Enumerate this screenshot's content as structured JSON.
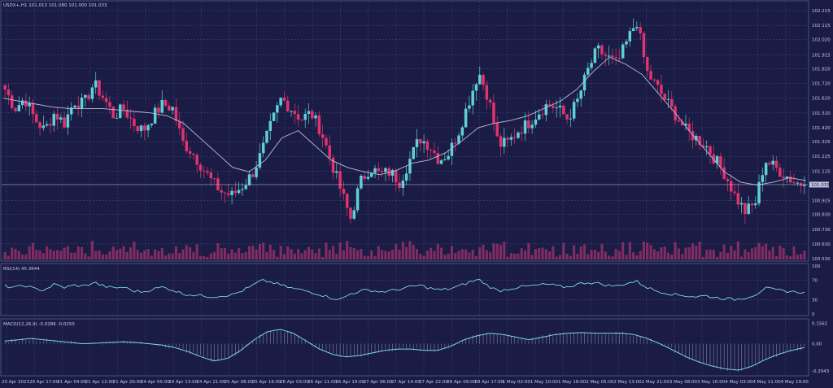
{
  "window": {
    "symbol_line": "USDX+,H1  101.013 101.080 101.000 101.033"
  },
  "colors": {
    "background": "#1a1c45",
    "grid": "#8a8fc0",
    "bull": "#5fd0d8",
    "bear": "#e0336f",
    "ma": "#b9bcd6",
    "rsi": "#7fd6e6",
    "macd": "#7fd6e6",
    "volume": "#d83a7a",
    "text": "#c8cbe6",
    "current_price_box": "#bfc3dc"
  },
  "chart_data": [
    {
      "type": "line",
      "panel": "price",
      "subtype": "candlestick",
      "current_price": 101.033,
      "current_price_label": "101.033",
      "y_ticks": [
        "102.215",
        "102.115",
        "102.020",
        "101.915",
        "101.820",
        "101.720",
        "101.620",
        "101.520",
        "101.420",
        "101.325",
        "101.225",
        "101.125",
        "100.925",
        "100.830",
        "100.730",
        "100.630",
        "100.530"
      ],
      "ylim": [
        100.53,
        102.265
      ],
      "x_tick_labels": [
        "20 Apr 2023",
        "20 Apr 17:00",
        "21 Apr 04:00",
        "21 Apr 12:00",
        "21 Apr 20:00",
        "24 Apr 05:00",
        "24 Apr 13:00",
        "24 Apr 21:00",
        "25 Apr 08:00",
        "25 Apr 16:00",
        "26 Apr 03:00",
        "26 Apr 11:00",
        "26 Apr 19:00",
        "27 Apr 06:00",
        "27 Apr 14:00",
        "27 Apr 22:00",
        "28 Apr 09:00",
        "28 Apr 17:00",
        "1 May 02:00",
        "1 May 10:00",
        "1 May 18:00",
        "2 May 05:00",
        "2 May 13:00",
        "2 May 21:00",
        "3 May 08:00",
        "3 May 16:00",
        "4 May 03:00",
        "4 May 11:00",
        "4 May 19:00"
      ],
      "close_path": [
        101.68,
        101.55,
        101.62,
        101.48,
        101.4,
        101.52,
        101.45,
        101.6,
        101.58,
        101.72,
        101.62,
        101.5,
        101.55,
        101.45,
        101.4,
        101.5,
        101.58,
        101.55,
        101.32,
        101.25,
        101.15,
        101.05,
        100.98,
        100.96,
        101.02,
        101.1,
        101.25,
        101.45,
        101.62,
        101.55,
        101.48,
        101.52,
        101.4,
        101.2,
        101.0,
        100.8,
        101.05,
        101.15,
        101.1,
        101.12,
        101.05,
        101.2,
        101.35,
        101.3,
        101.2,
        101.25,
        101.4,
        101.6,
        101.8,
        101.62,
        101.3,
        101.32,
        101.4,
        101.45,
        101.52,
        101.58,
        101.55,
        101.48,
        101.6,
        101.8,
        101.95,
        101.9,
        101.85,
        102.0,
        102.15,
        101.8,
        101.7,
        101.6,
        101.5,
        101.4,
        101.35,
        101.3,
        101.2,
        101.1,
        100.95,
        100.85,
        100.9,
        101.2,
        101.15,
        101.1,
        101.05,
        101.033
      ],
      "moving_average": [
        101.62,
        101.6,
        101.58,
        101.56,
        101.55,
        101.55,
        101.55,
        101.54,
        101.53,
        101.52,
        101.5,
        101.45,
        101.35,
        101.25,
        101.15,
        101.12,
        101.2,
        101.35,
        101.4,
        101.3,
        101.2,
        101.15,
        101.12,
        101.1,
        101.13,
        101.18,
        101.2,
        101.25,
        101.33,
        101.42,
        101.45,
        101.47,
        101.5,
        101.55,
        101.6,
        101.68,
        101.8,
        101.9,
        101.85,
        101.78,
        101.65,
        101.52,
        101.38,
        101.25,
        101.12,
        101.05,
        101.03,
        101.05,
        101.08,
        101.06
      ]
    },
    {
      "type": "line",
      "panel": "rsi",
      "title": "RSI(14) 45.3644",
      "y_ticks": [
        "100",
        "70",
        "30",
        "0"
      ],
      "ylim": [
        0,
        100
      ],
      "values": [
        58,
        55,
        60,
        52,
        50,
        62,
        55,
        60,
        58,
        66,
        58,
        54,
        56,
        48,
        46,
        52,
        56,
        50,
        42,
        40,
        38,
        36,
        38,
        40,
        48,
        58,
        70,
        66,
        60,
        54,
        50,
        46,
        40,
        34,
        30,
        42,
        48,
        50,
        46,
        48,
        52,
        56,
        60,
        54,
        50,
        52,
        58,
        66,
        72,
        58,
        48,
        52,
        56,
        58,
        60,
        62,
        58,
        56,
        62,
        66,
        64,
        60,
        58,
        64,
        68,
        56,
        48,
        44,
        40,
        38,
        36,
        38,
        34,
        32,
        30,
        34,
        40,
        54,
        50,
        48,
        46,
        45.4
      ]
    },
    {
      "type": "line",
      "panel": "macd",
      "title": "MACD(12,26,9) -0.0286 -0.0250",
      "y_ticks": [
        "0.1561",
        "0.00",
        "-0.2043"
      ],
      "ylim": [
        -0.23,
        0.17
      ],
      "values": [
        0.02,
        0.03,
        0.04,
        0.03,
        0.02,
        0.01,
        0.0,
        0.005,
        0.01,
        0.015,
        0.01,
        0.0,
        -0.01,
        -0.03,
        -0.06,
        -0.1,
        -0.13,
        -0.11,
        -0.05,
        0.03,
        0.09,
        0.11,
        0.08,
        0.02,
        -0.04,
        -0.08,
        -0.1,
        -0.09,
        -0.07,
        -0.05,
        -0.04,
        -0.04,
        -0.05,
        -0.05,
        -0.02,
        0.03,
        0.06,
        0.08,
        0.07,
        0.05,
        0.03,
        0.05,
        0.07,
        0.08,
        0.085,
        0.08,
        0.08,
        0.08,
        0.07,
        0.04,
        0.0,
        -0.05,
        -0.1,
        -0.14,
        -0.17,
        -0.19,
        -0.2,
        -0.17,
        -0.12,
        -0.08,
        -0.05,
        -0.0286
      ]
    }
  ]
}
